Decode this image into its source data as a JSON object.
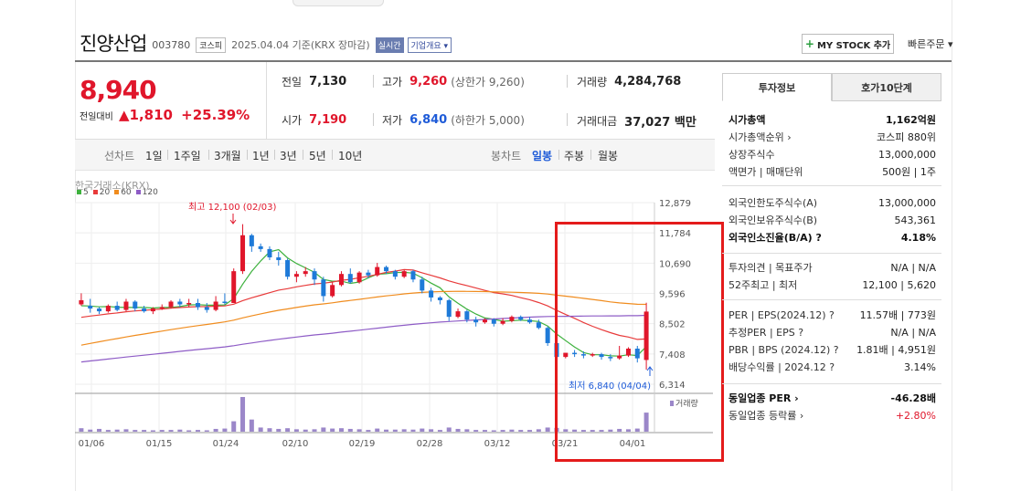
{
  "header": {
    "company": "진양산업",
    "code": "003780",
    "market": "코스피",
    "date_label": "2025.04.04 기준(KRX 장마감)",
    "realtime": "실시간",
    "corp_info": "기업개요 ▾"
  },
  "actions": {
    "mystock": "MY STOCK 추가",
    "mystock_plus": "+",
    "quick_order": "빠른주문 ▾"
  },
  "price": {
    "current": "8,940",
    "vs_label": "전일대비",
    "change": "▲1,810",
    "pct": "+25.39%"
  },
  "stats": {
    "prev_label": "전일",
    "prev": "7,130",
    "high_label": "고가",
    "high": "9,260",
    "high_sub": "(상한가 9,260)",
    "volume_label": "거래량",
    "volume": "4,284,768",
    "open_label": "시가",
    "open": "7,190",
    "low_label": "저가",
    "low": "6,840",
    "low_sub": "(하한가 5,000)",
    "amount_label": "거래대금",
    "amount": "37,027 백만"
  },
  "period_tabs": {
    "line_label": "선차트",
    "line": [
      "1일",
      "1주일",
      "3개월",
      "1년",
      "3년",
      "5년",
      "10년"
    ],
    "candle_label": "봉차트",
    "candle": [
      "일봉",
      "주봉",
      "월봉"
    ],
    "active_candle": "일봉"
  },
  "chart": {
    "source": "한국거래소(KRX)",
    "ma": [
      {
        "label": "5",
        "color": "#3db13d"
      },
      {
        "label": "20",
        "color": "#e83b3b"
      },
      {
        "label": "60",
        "color": "#f08c1e"
      },
      {
        "label": "120",
        "color": "#8e5cc6"
      }
    ],
    "high_note": "최고 12,100 (02/03)",
    "low_note": "최저 6,840 (04/04)",
    "volume_label": "거래량",
    "colors": {
      "up": "#e0162b",
      "down": "#1e7ad8",
      "volume": "#9b87c9"
    }
  },
  "chart_data": {
    "type": "candlestick",
    "yticks": [
      "12,879",
      "11,784",
      "10,690",
      "9,596",
      "8,502",
      "7,408",
      "6,314"
    ],
    "ylim": [
      6314,
      12879
    ],
    "xticks": [
      "01/06",
      "01/15",
      "01/24",
      "02/10",
      "02/19",
      "02/28",
      "03/12",
      "03/21",
      "04/01"
    ],
    "candles": [
      [
        9200,
        9600,
        9350,
        9150
      ],
      [
        9150,
        9400,
        9050,
        8900
      ],
      [
        9050,
        9100,
        8950,
        8850
      ],
      [
        8950,
        9200,
        9150,
        8900
      ],
      [
        9150,
        9300,
        9000,
        8950
      ],
      [
        9000,
        9400,
        9300,
        8950
      ],
      [
        9300,
        9350,
        9050,
        8950
      ],
      [
        9050,
        9150,
        8950,
        8900
      ],
      [
        8950,
        9100,
        9050,
        8850
      ],
      [
        9050,
        9200,
        9100,
        9000
      ],
      [
        9100,
        9350,
        9300,
        9050
      ],
      [
        9300,
        9400,
        9200,
        9100
      ],
      [
        9200,
        9400,
        9250,
        9100
      ],
      [
        9250,
        9400,
        9100,
        9000
      ],
      [
        9100,
        9250,
        9000,
        8900
      ],
      [
        9000,
        9500,
        9300,
        8950
      ],
      [
        9300,
        9600,
        9250,
        9200
      ],
      [
        9250,
        10500,
        10400,
        9250
      ],
      [
        10400,
        12100,
        11700,
        10300
      ],
      [
        11700,
        11750,
        11300,
        11100
      ],
      [
        11300,
        11400,
        11200,
        11100
      ],
      [
        11200,
        11300,
        10900,
        10800
      ],
      [
        10900,
        11100,
        10800,
        10600
      ],
      [
        10800,
        10850,
        10200,
        10100
      ],
      [
        10200,
        10400,
        10300,
        10000
      ],
      [
        10300,
        10550,
        10400,
        10200
      ],
      [
        10400,
        10500,
        10100,
        9900
      ],
      [
        10100,
        10200,
        9500,
        9300
      ],
      [
        9500,
        10000,
        9900,
        9450
      ],
      [
        9900,
        10400,
        10300,
        9850
      ],
      [
        10300,
        10500,
        10000,
        9950
      ],
      [
        10000,
        10400,
        10350,
        9950
      ],
      [
        10350,
        10450,
        10250,
        10150
      ],
      [
        10250,
        10700,
        10550,
        10200
      ],
      [
        10550,
        10600,
        10400,
        10300
      ],
      [
        10400,
        10450,
        10200,
        10100
      ],
      [
        10200,
        10450,
        10400,
        10150
      ],
      [
        10400,
        10450,
        10100,
        10000
      ],
      [
        10100,
        10200,
        9700,
        9600
      ],
      [
        9700,
        9800,
        9450,
        9300
      ],
      [
        9450,
        9500,
        9350,
        9200
      ],
      [
        9350,
        9400,
        8750,
        8600
      ],
      [
        8750,
        9050,
        8950,
        8700
      ],
      [
        8950,
        9000,
        8650,
        8550
      ],
      [
        8650,
        8750,
        8550,
        8400
      ],
      [
        8550,
        8700,
        8650,
        8500
      ],
      [
        8650,
        8700,
        8500,
        8400
      ],
      [
        8500,
        8700,
        8600,
        8450
      ],
      [
        8600,
        8800,
        8750,
        8550
      ],
      [
        8750,
        8800,
        8650,
        8600
      ],
      [
        8650,
        8750,
        8550,
        8500
      ],
      [
        8550,
        8650,
        8350,
        8300
      ],
      [
        8350,
        8400,
        7800,
        7700
      ],
      [
        7800,
        7900,
        7300,
        7200
      ],
      [
        7300,
        7400,
        7450,
        7250
      ],
      [
        7450,
        7550,
        7400,
        7300
      ],
      [
        7400,
        7500,
        7350,
        7250
      ],
      [
        7350,
        7450,
        7400,
        7300
      ],
      [
        7400,
        7450,
        7300,
        7200
      ],
      [
        7300,
        7400,
        7250,
        7150
      ],
      [
        7250,
        7700,
        7350,
        7200
      ],
      [
        7350,
        7650,
        7600,
        7300
      ],
      [
        7600,
        7700,
        7250,
        7100
      ],
      [
        7190,
        9260,
        8940,
        6840
      ]
    ],
    "volume_rel": [
      0.1,
      0.06,
      0.08,
      0.05,
      0.06,
      0.07,
      0.05,
      0.05,
      0.04,
      0.05,
      0.05,
      0.06,
      0.04,
      0.05,
      0.04,
      0.08,
      0.09,
      0.3,
      1.0,
      0.35,
      0.12,
      0.1,
      0.08,
      0.1,
      0.07,
      0.06,
      0.07,
      0.12,
      0.09,
      0.1,
      0.08,
      0.07,
      0.05,
      0.09,
      0.06,
      0.06,
      0.07,
      0.06,
      0.09,
      0.07,
      0.05,
      0.12,
      0.08,
      0.07,
      0.05,
      0.05,
      0.04,
      0.05,
      0.06,
      0.05,
      0.05,
      0.07,
      0.12,
      0.11,
      0.07,
      0.06,
      0.05,
      0.05,
      0.05,
      0.06,
      0.08,
      0.07,
      0.09,
      0.55
    ]
  },
  "right_panel": {
    "tab_info": "투자정보",
    "tab_hoga": "호가10단계",
    "rows": [
      {
        "k": "시가총액",
        "v": "1,162억원",
        "bold": true
      },
      {
        "k": "시가총액순위 ›",
        "v": "코스피 880위"
      },
      {
        "k": "상장주식수",
        "v": "13,000,000"
      },
      {
        "k": "액면가 | 매매단위",
        "v": "500원 | 1주"
      },
      {
        "k": "외국인한도주식수(A)",
        "v": "13,000,000"
      },
      {
        "k": "외국인보유주식수(B)",
        "v": "543,361"
      },
      {
        "k": "외국인소진율(B/A) ?",
        "v": "4.18%",
        "bold": true
      },
      {
        "k": "투자의견 | 목표주가",
        "v": "N/A | N/A"
      },
      {
        "k": "52주최고 | 최저",
        "v": "12,100 | 5,620"
      },
      {
        "k": "PER | EPS(2024.12) ?",
        "v": "11.57배 | 773원"
      },
      {
        "k": "추정PER | EPS ?",
        "v": "N/A | N/A"
      },
      {
        "k": "PBR | BPS (2024.12) ?",
        "v": "1.81배 | 4,951원"
      },
      {
        "k": "배당수익률 | 2024.12 ?",
        "v": "3.14%"
      },
      {
        "k": "동일업종 PER ›",
        "v": "-46.28배",
        "bold": true
      },
      {
        "k": "동일업종 등락률 ›",
        "v": "+2.80%",
        "red": true
      }
    ]
  }
}
